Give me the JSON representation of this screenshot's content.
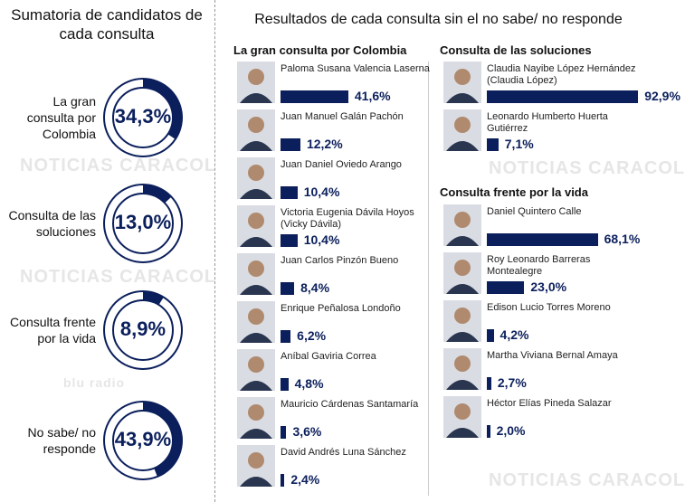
{
  "left_title": "Sumatoria de candidatos de cada consulta",
  "main_title": "Resultados de cada consulta sin el no sabe/ no responde",
  "watermarks": [
    "NOTICIAS CARACOL",
    "blu radio"
  ],
  "colors": {
    "accent": "#0b1f5c"
  },
  "chart_data": [
    {
      "type": "pie",
      "title": "Sumatoria de candidatos de cada consulta",
      "categories": [
        "La gran consulta por Colombia",
        "Consulta de las soluciones",
        "Consulta frente por la vida",
        "No sabe/ no responde"
      ],
      "values": [
        34.3,
        13.0,
        8.9,
        43.9
      ],
      "labels": [
        "34,3%",
        "13,0%",
        "8,9%",
        "43,9%"
      ]
    },
    {
      "type": "bar",
      "title": "La gran consulta por Colombia",
      "categories": [
        "Paloma Susana Valencia Laserna",
        "Juan Manuel Galán Pachón",
        "Juan Daniel Oviedo Arango",
        "Victoria Eugenia Dávila Hoyos (Vicky Dávila)",
        "Juan Carlos Pinzón Bueno",
        "Enrique Peñalosa Londoño",
        "Aníbal Gaviria Correa",
        "Mauricio Cárdenas Santamaría",
        "David Andrés Luna Sánchez"
      ],
      "values": [
        41.6,
        12.2,
        10.4,
        10.4,
        8.4,
        6.2,
        4.8,
        3.6,
        2.4
      ],
      "labels": [
        "41,6%",
        "12,2%",
        "10,4%",
        "10,4%",
        "8,4%",
        "6,2%",
        "4,8%",
        "3,6%",
        "2,4%"
      ]
    },
    {
      "type": "bar",
      "title": "Consulta de las soluciones",
      "categories": [
        "Claudia Nayibe López Hernández (Claudia López)",
        "Leonardo Humberto Huerta Gutiérrez"
      ],
      "values": [
        92.9,
        7.1
      ],
      "labels": [
        "92,9%",
        "7,1%"
      ]
    },
    {
      "type": "bar",
      "title": "Consulta frente por la vida",
      "categories": [
        "Daniel Quintero Calle",
        "Roy Leonardo Barreras Montealegre",
        "Edison Lucio Torres Moreno",
        "Martha Viviana Bernal Amaya",
        "Héctor Elías Pineda Salazar"
      ],
      "values": [
        68.1,
        23.0,
        4.2,
        2.7,
        2.0
      ],
      "labels": [
        "68,1%",
        "23,0%",
        "4,2%",
        "2,7%",
        "2,0%"
      ]
    }
  ]
}
